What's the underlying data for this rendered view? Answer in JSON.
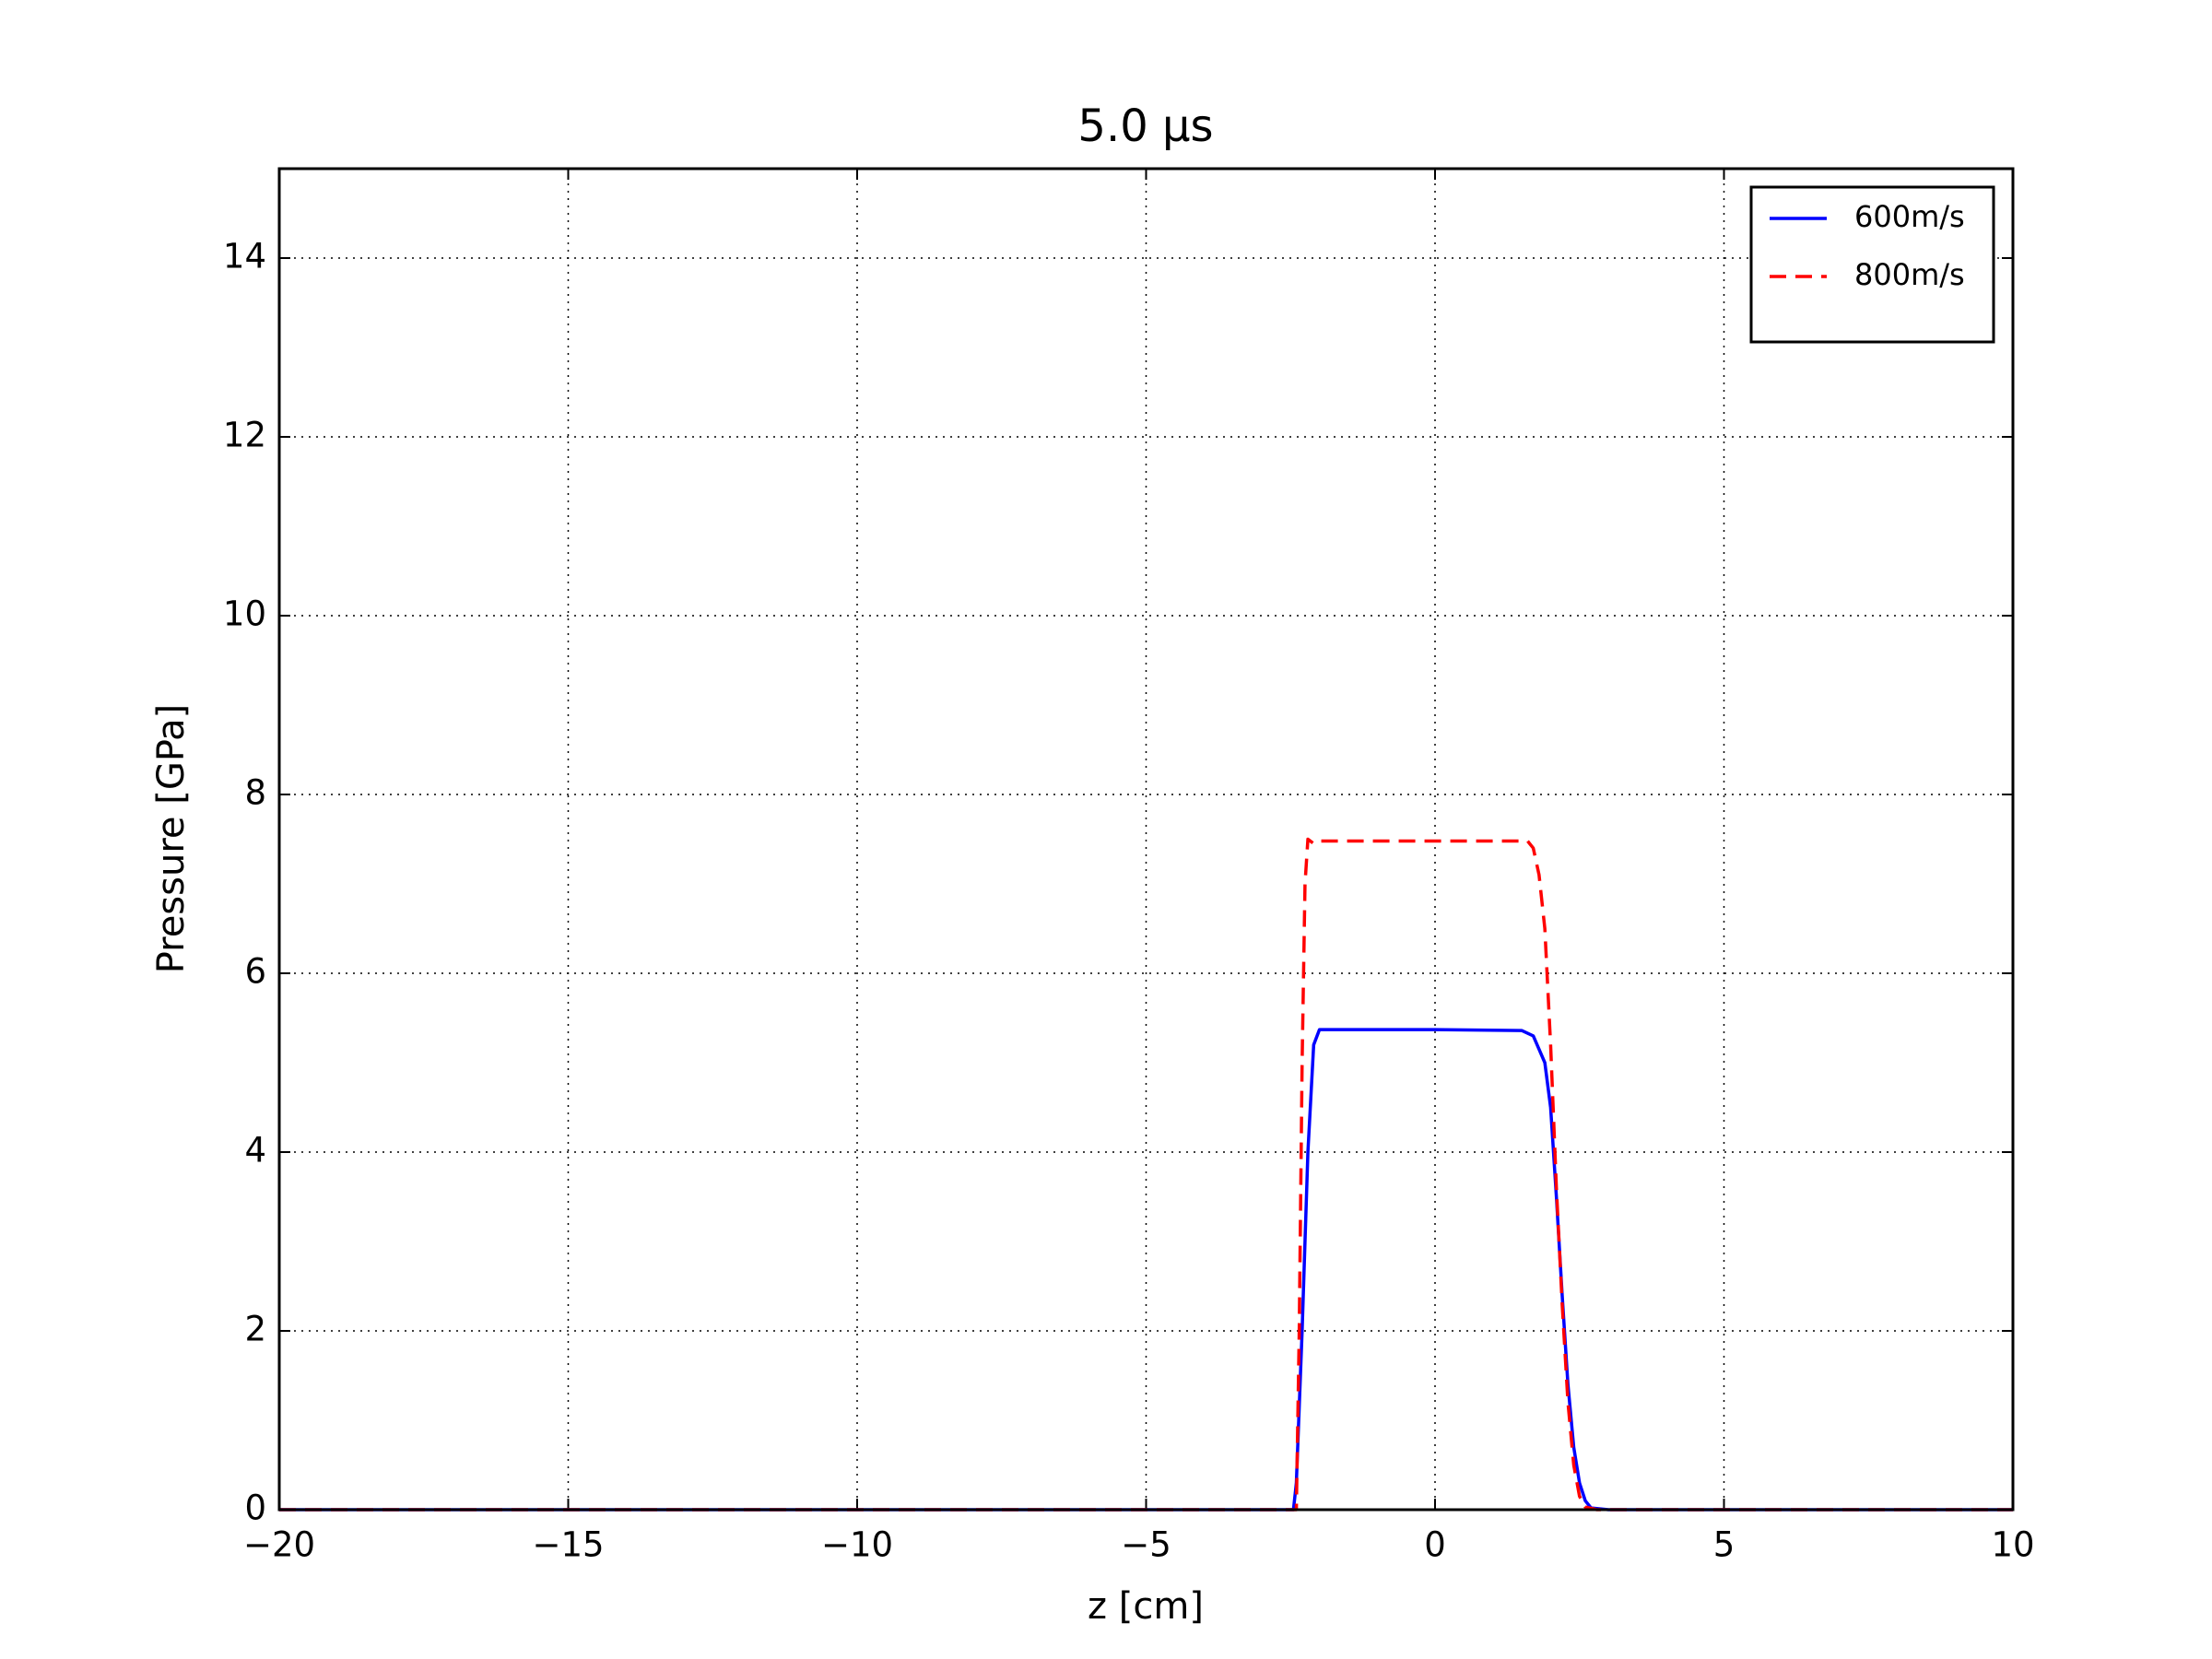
{
  "chart_data": {
    "type": "line",
    "title": "5.0 μs",
    "xlabel": "z [cm]",
    "ylabel": "Pressure [GPa]",
    "series": [
      {
        "name": "600m/s",
        "color": "#0000ff",
        "dash": false,
        "x": [
          -20,
          -2.45,
          -2.4,
          -2.3,
          -2.2,
          -2.1,
          -2.0,
          0,
          1.5,
          1.7,
          1.9,
          2.0,
          2.1,
          2.2,
          2.3,
          2.4,
          2.5,
          2.6,
          2.7,
          3.0,
          10
        ],
        "values": [
          0,
          0,
          0.3,
          2.0,
          4.0,
          5.2,
          5.37,
          5.37,
          5.36,
          5.3,
          5.0,
          4.5,
          3.5,
          2.4,
          1.4,
          0.7,
          0.3,
          0.1,
          0.02,
          0,
          0
        ]
      },
      {
        "name": "800m/s",
        "color": "#ff0000",
        "dash": true,
        "x": [
          -20,
          -2.4,
          -2.35,
          -2.3,
          -2.25,
          -2.2,
          -2.1,
          -2.0,
          1.6,
          1.7,
          1.8,
          1.9,
          2.0,
          2.1,
          2.2,
          2.3,
          2.4,
          2.5,
          2.6,
          2.8,
          10
        ],
        "values": [
          0,
          0,
          2.0,
          5.0,
          7.0,
          7.5,
          7.45,
          7.48,
          7.48,
          7.4,
          7.1,
          6.5,
          5.2,
          3.6,
          2.3,
          1.2,
          0.5,
          0.15,
          0.03,
          0,
          0
        ]
      }
    ],
    "xlim": [
      -20,
      10
    ],
    "xticks": [
      {
        "value": -20,
        "label": "−20"
      },
      {
        "value": -15,
        "label": "−15"
      },
      {
        "value": -10,
        "label": "−10"
      },
      {
        "value": -5,
        "label": "−5"
      },
      0,
      5,
      10
    ],
    "ylim": [
      0,
      15
    ],
    "yticks": [
      0,
      2,
      4,
      6,
      8,
      10,
      12,
      14
    ],
    "grid": true,
    "legend": "upper right"
  }
}
